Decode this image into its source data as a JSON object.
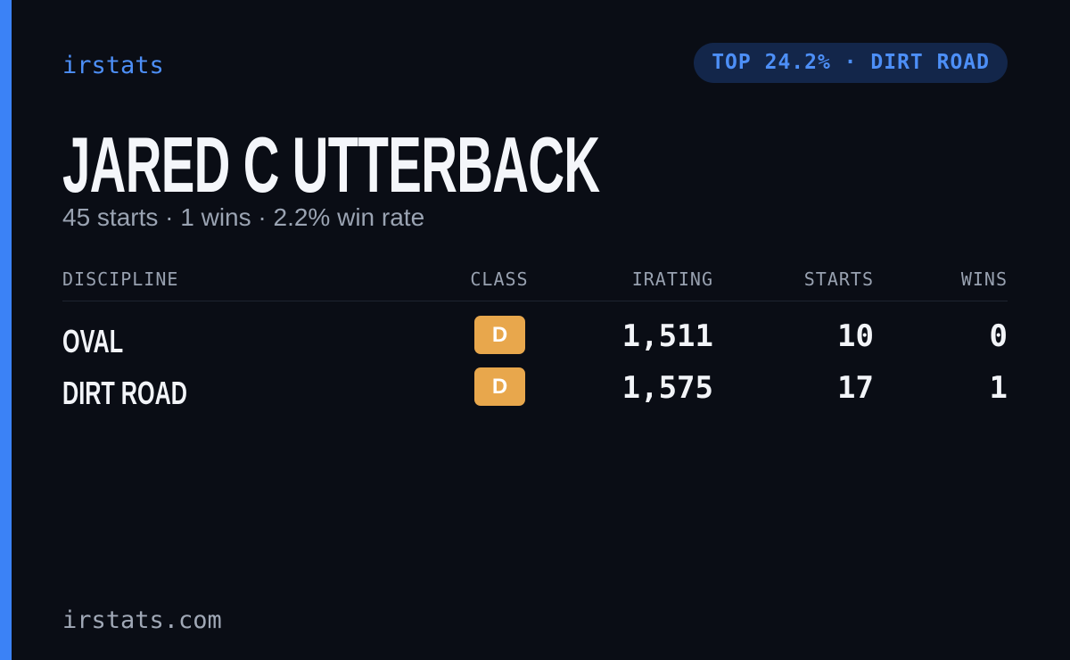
{
  "header": {
    "brand": "irstats",
    "badge": "TOP 24.2% · DIRT ROAD"
  },
  "driver": {
    "name": "JARED C UTTERBACK",
    "summary": "45 starts · 1 wins · 2.2% win rate"
  },
  "table": {
    "columns": [
      "DISCIPLINE",
      "CLASS",
      "IRATING",
      "STARTS",
      "WINS"
    ],
    "rows": [
      [
        "OVAL",
        "D",
        "1,511",
        "10",
        "0"
      ],
      [
        "DIRT ROAD",
        "D",
        "1,575",
        "17",
        "1"
      ]
    ]
  },
  "footer": {
    "url": "irstats.com"
  }
}
